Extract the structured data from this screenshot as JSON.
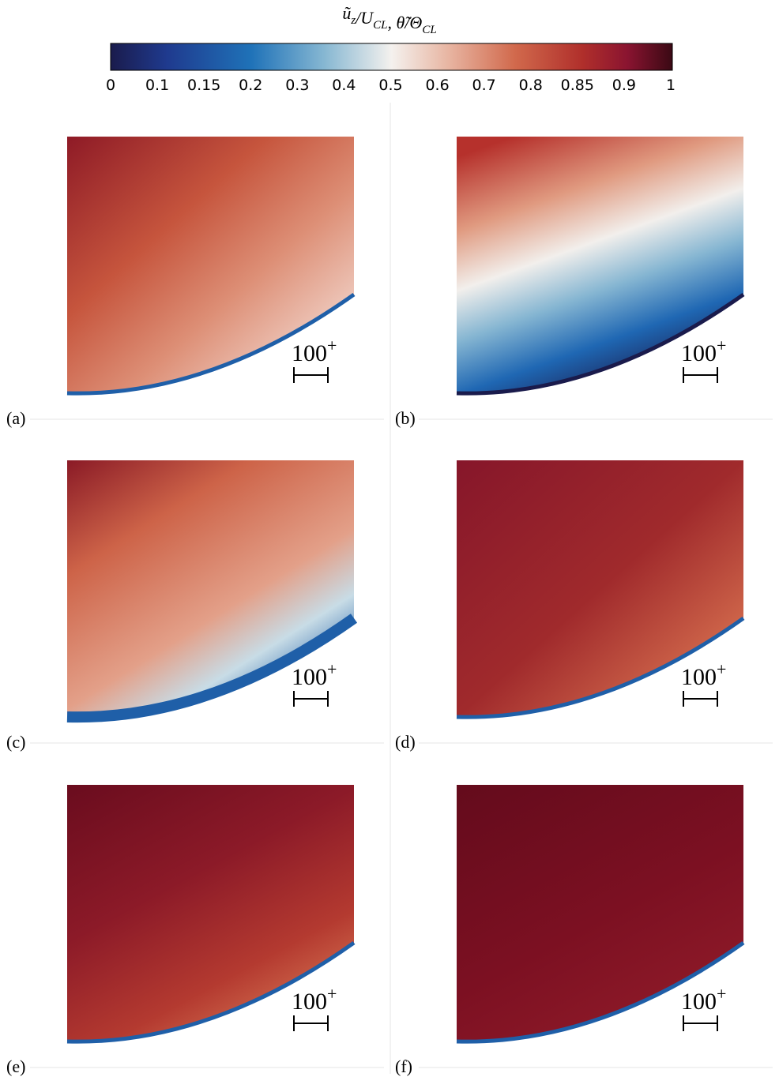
{
  "colorbar": {
    "label_parts": [
      {
        "text": "ũ",
        "sub": "z"
      },
      {
        "text": "/U",
        "sub": "CL"
      },
      {
        "text": ",    θ̃/Θ",
        "sub": "CL"
      }
    ],
    "ticks": [
      0,
      0.1,
      0.15,
      0.2,
      0.3,
      0.4,
      0.5,
      0.6,
      0.7,
      0.8,
      0.85,
      0.9,
      1
    ]
  },
  "scale_bar": {
    "text": "100",
    "superscript": "+"
  },
  "panels": [
    {
      "label": "(a)"
    },
    {
      "label": "(b)"
    },
    {
      "label": "(c)"
    },
    {
      "label": "(d)"
    },
    {
      "label": "(e)"
    },
    {
      "label": "(f)"
    }
  ]
}
